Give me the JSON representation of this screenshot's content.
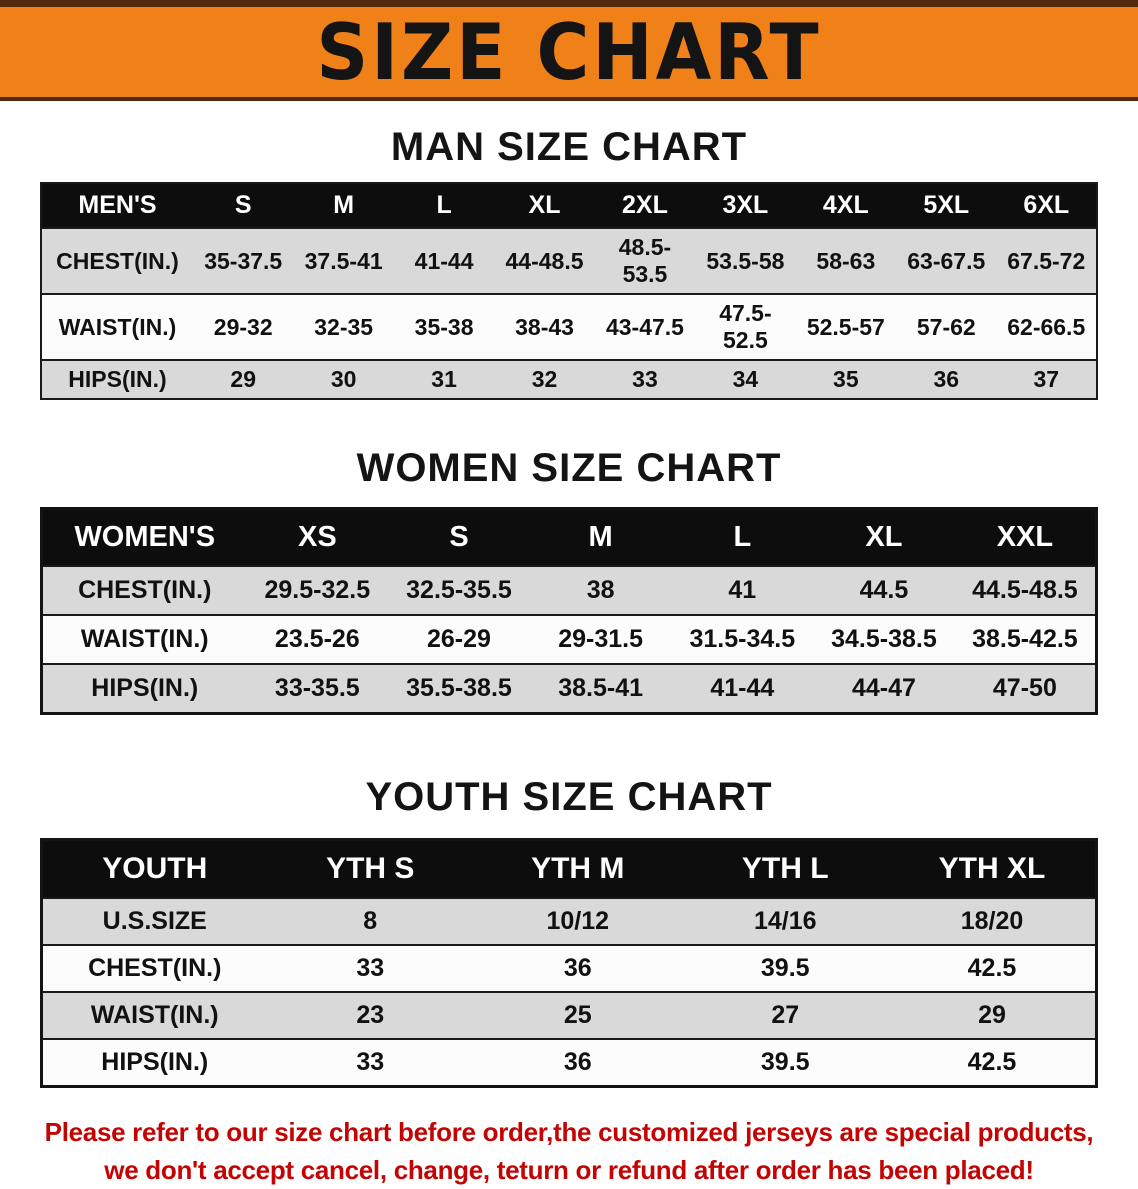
{
  "banner": {
    "title": "SIZE CHART"
  },
  "headings": {
    "men": "MAN SIZE CHART",
    "women": "WOMEN SIZE CHART",
    "youth": "YOUTH SIZE CHART"
  },
  "footer": {
    "line1": "Please refer to our size chart before order,the customized jerseys are special products,",
    "line2": "we don't accept cancel, change, teturn or refund after order has been placed!"
  },
  "colors": {
    "banner_bg": "#f08018",
    "banner_line": "#53290c",
    "header_bg": "#0d0d0d",
    "row_gray": "#d9d9d9",
    "row_white": "#fcfcfc",
    "footer_red": "#c40303"
  },
  "chart_data": [
    {
      "type": "table",
      "title": "MAN SIZE CHART",
      "columns": [
        "MEN'S",
        "S",
        "M",
        "L",
        "XL",
        "2XL",
        "3XL",
        "4XL",
        "5XL",
        "6XL"
      ],
      "rows": [
        [
          "CHEST(IN.)",
          "35-37.5",
          "37.5-41",
          "41-44",
          "44-48.5",
          "48.5-53.5",
          "53.5-58",
          "58-63",
          "63-67.5",
          "67.5-72"
        ],
        [
          "WAIST(IN.)",
          "29-32",
          "32-35",
          "35-38",
          "38-43",
          "43-47.5",
          "47.5-52.5",
          "52.5-57",
          "57-62",
          "62-66.5"
        ],
        [
          "HIPS(IN.)",
          "29",
          "30",
          "31",
          "32",
          "33",
          "34",
          "35",
          "36",
          "37"
        ]
      ]
    },
    {
      "type": "table",
      "title": "WOMEN SIZE CHART",
      "columns": [
        "WOMEN'S",
        "XS",
        "S",
        "M",
        "L",
        "XL",
        "XXL"
      ],
      "rows": [
        [
          "CHEST(IN.)",
          "29.5-32.5",
          "32.5-35.5",
          "38",
          "41",
          "44.5",
          "44.5-48.5"
        ],
        [
          "WAIST(IN.)",
          "23.5-26",
          "26-29",
          "29-31.5",
          "31.5-34.5",
          "34.5-38.5",
          "38.5-42.5"
        ],
        [
          "HIPS(IN.)",
          "33-35.5",
          "35.5-38.5",
          "38.5-41",
          "41-44",
          "44-47",
          "47-50"
        ]
      ]
    },
    {
      "type": "table",
      "title": "YOUTH SIZE CHART",
      "columns": [
        "YOUTH",
        "YTH S",
        "YTH M",
        "YTH L",
        "YTH XL"
      ],
      "rows": [
        [
          "U.S.SIZE",
          "8",
          "10/12",
          "14/16",
          "18/20"
        ],
        [
          "CHEST(IN.)",
          "33",
          "36",
          "39.5",
          "42.5"
        ],
        [
          "WAIST(IN.)",
          "23",
          "25",
          "27",
          "29"
        ],
        [
          "HIPS(IN.)",
          "33",
          "36",
          "39.5",
          "42.5"
        ]
      ]
    }
  ]
}
